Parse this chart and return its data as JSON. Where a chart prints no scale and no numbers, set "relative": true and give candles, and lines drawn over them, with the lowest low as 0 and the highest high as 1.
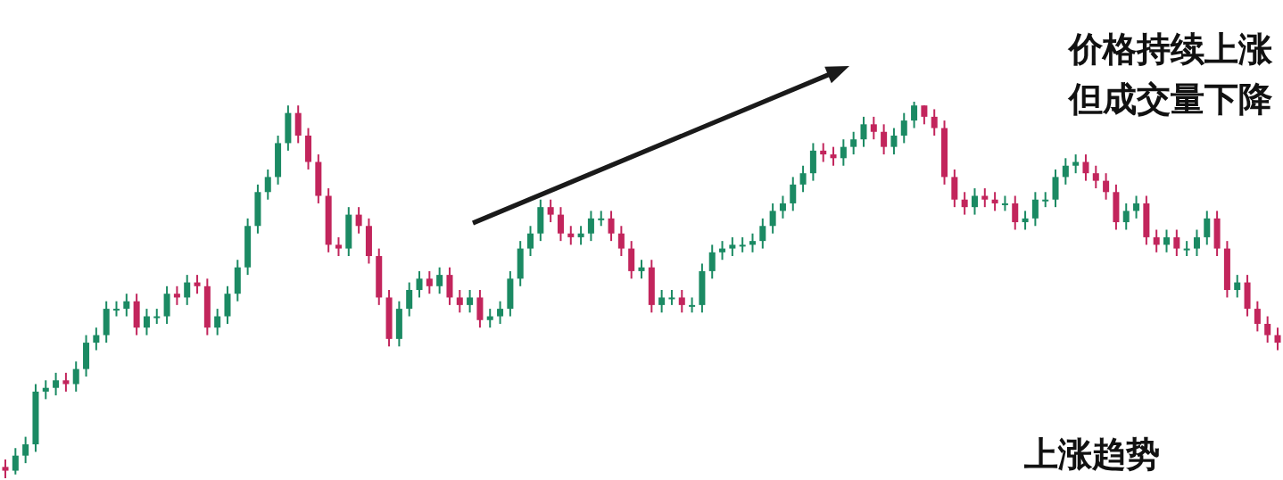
{
  "chart_data": {
    "type": "candlestick",
    "relative": true,
    "colors": [
      "#c2255c",
      "#1b8a63",
      "#1b8a63",
      "#1b8a63",
      "#1b8a63",
      "#1b8a63",
      "#c2255c",
      "#1b8a63",
      "#1b8a63",
      "#1b8a63",
      "#1b8a63",
      "#1b8a63",
      "#1b8a63",
      "#c2255c",
      "#1b8a63",
      "#1b8a63",
      "#1b8a63",
      "#c2255c",
      "#1b8a63",
      "#c2255c",
      "#c2255c",
      "#1b8a63",
      "#1b8a63",
      "#1b8a63",
      "#1b8a63",
      "#1b8a63",
      "#1b8a63",
      "#1b8a63",
      "#1b8a63",
      "#c2255c",
      "#c2255c",
      "#c2255c",
      "#c2255c",
      "#c2255c",
      "#1b8a63",
      "#c2255c",
      "#c2255c",
      "#c2255c",
      "#c2255c",
      "#1b8a63",
      "#1b8a63",
      "#1b8a63",
      "#c2255c",
      "#1b8a63",
      "#c2255c",
      "#c2255c",
      "#1b8a63",
      "#c2255c",
      "#1b8a63",
      "#1b8a63",
      "#1b8a63",
      "#1b8a63",
      "#1b8a63",
      "#1b8a63",
      "#c2255c",
      "#c2255c",
      "#c2255c",
      "#1b8a63",
      "#1b8a63",
      "#1b8a63",
      "#c2255c",
      "#c2255c",
      "#c2255c",
      "#1b8a63",
      "#c2255c",
      "#1b8a63",
      "#1b8a63",
      "#c2255c",
      "#1b8a63",
      "#1b8a63",
      "#1b8a63",
      "#1b8a63",
      "#1b8a63",
      "#1b8a63",
      "#1b8a63",
      "#1b8a63",
      "#1b8a63",
      "#1b8a63",
      "#1b8a63",
      "#1b8a63",
      "#1b8a63",
      "#c2255c",
      "#c2255c",
      "#1b8a63",
      "#1b8a63",
      "#1b8a63",
      "#c2255c",
      "#c2255c",
      "#1b8a63",
      "#1b8a63",
      "#1b8a63",
      "#c2255c",
      "#c2255c",
      "#c2255c",
      "#c2255c",
      "#c2255c",
      "#1b8a63",
      "#c2255c",
      "#c2255c",
      "#1b8a63",
      "#c2255c",
      "#1b8a63",
      "#1b8a63",
      "#1b8a63",
      "#1b8a63",
      "#1b8a63",
      "#1b8a63",
      "#c2255c",
      "#c2255c",
      "#c2255c",
      "#c2255c",
      "#1b8a63",
      "#1b8a63",
      "#c2255c",
      "#c2255c",
      "#1b8a63",
      "#c2255c",
      "#1b8a63",
      "#1b8a63",
      "#1b8a63",
      "#c2255c",
      "#c2255c",
      "#1b8a63",
      "#c2255c",
      "#c2255c",
      "#c2255c",
      "#c2255c"
    ],
    "annotations": [
      "价格持续上涨",
      "但成交量下降",
      "上涨趋势"
    ],
    "categories": [
      null,
      null,
      null,
      null,
      null,
      null,
      null,
      null,
      null,
      null,
      null,
      null,
      null,
      null,
      null,
      null,
      null,
      null,
      null,
      null,
      null,
      null,
      null,
      null,
      null,
      null,
      null,
      null,
      null,
      null,
      null,
      null,
      null,
      null,
      null,
      null,
      null,
      null,
      null,
      null,
      null,
      null,
      null,
      null,
      null,
      null,
      null,
      null,
      null,
      null,
      null,
      null,
      null,
      null,
      null,
      null,
      null,
      null,
      null,
      null,
      null,
      null,
      null,
      null,
      null,
      null,
      null,
      null,
      null,
      null,
      null,
      null,
      null,
      null,
      null,
      null,
      null,
      null,
      null,
      null,
      null,
      null,
      null,
      null,
      null,
      null,
      null,
      null,
      null,
      null,
      null,
      null,
      null,
      null,
      null,
      null,
      null,
      null,
      null,
      null,
      null,
      null,
      null,
      null,
      null,
      null,
      null,
      null,
      null,
      null,
      null,
      null,
      null,
      null,
      null,
      null,
      null,
      null,
      null,
      null,
      null,
      null,
      null,
      null,
      null,
      null,
      null
    ],
    "ohlc": [
      [
        0.03,
        0.05,
        0.0,
        0.02
      ],
      [
        0.02,
        0.08,
        0.01,
        0.06
      ],
      [
        0.06,
        0.11,
        0.04,
        0.09
      ],
      [
        0.09,
        0.25,
        0.07,
        0.23
      ],
      [
        0.23,
        0.26,
        0.21,
        0.24
      ],
      [
        0.24,
        0.28,
        0.22,
        0.26
      ],
      [
        0.26,
        0.28,
        0.23,
        0.25
      ],
      [
        0.25,
        0.31,
        0.23,
        0.29
      ],
      [
        0.29,
        0.38,
        0.27,
        0.36
      ],
      [
        0.36,
        0.4,
        0.34,
        0.38
      ],
      [
        0.38,
        0.47,
        0.36,
        0.45
      ],
      [
        0.45,
        0.47,
        0.43,
        0.45
      ],
      [
        0.45,
        0.49,
        0.43,
        0.47
      ],
      [
        0.47,
        0.49,
        0.38,
        0.4
      ],
      [
        0.4,
        0.45,
        0.38,
        0.43
      ],
      [
        0.43,
        0.45,
        0.41,
        0.43
      ],
      [
        0.43,
        0.51,
        0.41,
        0.49
      ],
      [
        0.49,
        0.51,
        0.46,
        0.48
      ],
      [
        0.48,
        0.54,
        0.46,
        0.52
      ],
      [
        0.52,
        0.54,
        0.49,
        0.51
      ],
      [
        0.51,
        0.53,
        0.38,
        0.4
      ],
      [
        0.4,
        0.45,
        0.38,
        0.43
      ],
      [
        0.43,
        0.51,
        0.41,
        0.49
      ],
      [
        0.49,
        0.58,
        0.47,
        0.56
      ],
      [
        0.56,
        0.69,
        0.54,
        0.67
      ],
      [
        0.67,
        0.78,
        0.65,
        0.76
      ],
      [
        0.76,
        0.82,
        0.74,
        0.8
      ],
      [
        0.8,
        0.91,
        0.78,
        0.89
      ],
      [
        0.89,
        0.99,
        0.87,
        0.97
      ],
      [
        0.97,
        0.99,
        0.89,
        0.91
      ],
      [
        0.91,
        0.93,
        0.82,
        0.84
      ],
      [
        0.84,
        0.86,
        0.73,
        0.75
      ],
      [
        0.75,
        0.77,
        0.6,
        0.62
      ],
      [
        0.62,
        0.64,
        0.59,
        0.61
      ],
      [
        0.61,
        0.72,
        0.59,
        0.7
      ],
      [
        0.7,
        0.72,
        0.65,
        0.67
      ],
      [
        0.67,
        0.69,
        0.57,
        0.59
      ],
      [
        0.59,
        0.61,
        0.46,
        0.48
      ],
      [
        0.48,
        0.5,
        0.35,
        0.37
      ],
      [
        0.37,
        0.47,
        0.35,
        0.45
      ],
      [
        0.45,
        0.52,
        0.43,
        0.5
      ],
      [
        0.5,
        0.55,
        0.48,
        0.53
      ],
      [
        0.53,
        0.55,
        0.49,
        0.51
      ],
      [
        0.51,
        0.56,
        0.49,
        0.54
      ],
      [
        0.54,
        0.56,
        0.46,
        0.48
      ],
      [
        0.48,
        0.5,
        0.44,
        0.46
      ],
      [
        0.46,
        0.5,
        0.44,
        0.48
      ],
      [
        0.48,
        0.5,
        0.4,
        0.42
      ],
      [
        0.42,
        0.45,
        0.4,
        0.43
      ],
      [
        0.43,
        0.47,
        0.41,
        0.45
      ],
      [
        0.45,
        0.55,
        0.43,
        0.53
      ],
      [
        0.53,
        0.63,
        0.51,
        0.61
      ],
      [
        0.61,
        0.67,
        0.59,
        0.65
      ],
      [
        0.65,
        0.74,
        0.63,
        0.72
      ],
      [
        0.72,
        0.74,
        0.68,
        0.7
      ],
      [
        0.7,
        0.72,
        0.63,
        0.65
      ],
      [
        0.65,
        0.67,
        0.62,
        0.64
      ],
      [
        0.64,
        0.67,
        0.62,
        0.65
      ],
      [
        0.65,
        0.71,
        0.63,
        0.69
      ],
      [
        0.69,
        0.71,
        0.67,
        0.69
      ],
      [
        0.69,
        0.71,
        0.63,
        0.65
      ],
      [
        0.65,
        0.67,
        0.59,
        0.61
      ],
      [
        0.61,
        0.63,
        0.53,
        0.55
      ],
      [
        0.55,
        0.58,
        0.53,
        0.56
      ],
      [
        0.56,
        0.58,
        0.44,
        0.46
      ],
      [
        0.46,
        0.5,
        0.44,
        0.48
      ],
      [
        0.48,
        0.5,
        0.46,
        0.48
      ],
      [
        0.48,
        0.5,
        0.44,
        0.46
      ],
      [
        0.46,
        0.48,
        0.44,
        0.46
      ],
      [
        0.46,
        0.57,
        0.44,
        0.55
      ],
      [
        0.55,
        0.62,
        0.53,
        0.6
      ],
      [
        0.6,
        0.63,
        0.58,
        0.61
      ],
      [
        0.61,
        0.64,
        0.59,
        0.62
      ],
      [
        0.62,
        0.64,
        0.6,
        0.62
      ],
      [
        0.62,
        0.65,
        0.6,
        0.63
      ],
      [
        0.63,
        0.69,
        0.61,
        0.67
      ],
      [
        0.67,
        0.73,
        0.65,
        0.71
      ],
      [
        0.71,
        0.75,
        0.69,
        0.73
      ],
      [
        0.73,
        0.8,
        0.71,
        0.78
      ],
      [
        0.78,
        0.83,
        0.76,
        0.81
      ],
      [
        0.81,
        0.89,
        0.79,
        0.87
      ],
      [
        0.87,
        0.89,
        0.84,
        0.86
      ],
      [
        0.86,
        0.88,
        0.83,
        0.85
      ],
      [
        0.85,
        0.9,
        0.83,
        0.88
      ],
      [
        0.88,
        0.92,
        0.86,
        0.9
      ],
      [
        0.9,
        0.96,
        0.88,
        0.94
      ],
      [
        0.94,
        0.96,
        0.9,
        0.92
      ],
      [
        0.92,
        0.94,
        0.86,
        0.88
      ],
      [
        0.88,
        0.93,
        0.86,
        0.91
      ],
      [
        0.91,
        0.97,
        0.89,
        0.95
      ],
      [
        0.95,
        1.0,
        0.93,
        0.99
      ],
      [
        0.99,
        0.99,
        0.94,
        0.96
      ],
      [
        0.96,
        0.98,
        0.91,
        0.93
      ],
      [
        0.93,
        0.95,
        0.78,
        0.8
      ],
      [
        0.8,
        0.82,
        0.72,
        0.74
      ],
      [
        0.74,
        0.76,
        0.7,
        0.72
      ],
      [
        0.72,
        0.77,
        0.7,
        0.75
      ],
      [
        0.75,
        0.77,
        0.72,
        0.74
      ],
      [
        0.74,
        0.76,
        0.71,
        0.73
      ],
      [
        0.73,
        0.75,
        0.71,
        0.73
      ],
      [
        0.73,
        0.75,
        0.66,
        0.68
      ],
      [
        0.68,
        0.71,
        0.66,
        0.69
      ],
      [
        0.69,
        0.76,
        0.67,
        0.74
      ],
      [
        0.74,
        0.76,
        0.72,
        0.74
      ],
      [
        0.74,
        0.82,
        0.72,
        0.8
      ],
      [
        0.8,
        0.85,
        0.78,
        0.83
      ],
      [
        0.83,
        0.86,
        0.81,
        0.84
      ],
      [
        0.84,
        0.86,
        0.79,
        0.81
      ],
      [
        0.81,
        0.83,
        0.77,
        0.79
      ],
      [
        0.79,
        0.81,
        0.74,
        0.76
      ],
      [
        0.76,
        0.78,
        0.66,
        0.68
      ],
      [
        0.68,
        0.73,
        0.66,
        0.71
      ],
      [
        0.71,
        0.75,
        0.69,
        0.73
      ],
      [
        0.73,
        0.75,
        0.62,
        0.64
      ],
      [
        0.64,
        0.66,
        0.6,
        0.62
      ],
      [
        0.62,
        0.66,
        0.6,
        0.64
      ],
      [
        0.64,
        0.66,
        0.59,
        0.61
      ],
      [
        0.61,
        0.63,
        0.59,
        0.61
      ],
      [
        0.61,
        0.66,
        0.59,
        0.64
      ],
      [
        0.64,
        0.71,
        0.62,
        0.69
      ],
      [
        0.69,
        0.71,
        0.59,
        0.61
      ],
      [
        0.61,
        0.63,
        0.48,
        0.5
      ],
      [
        0.5,
        0.54,
        0.48,
        0.52
      ],
      [
        0.52,
        0.54,
        0.43,
        0.45
      ],
      [
        0.45,
        0.47,
        0.39,
        0.41
      ],
      [
        0.41,
        0.43,
        0.36,
        0.38
      ],
      [
        0.38,
        0.4,
        0.34,
        0.36
      ]
    ]
  }
}
